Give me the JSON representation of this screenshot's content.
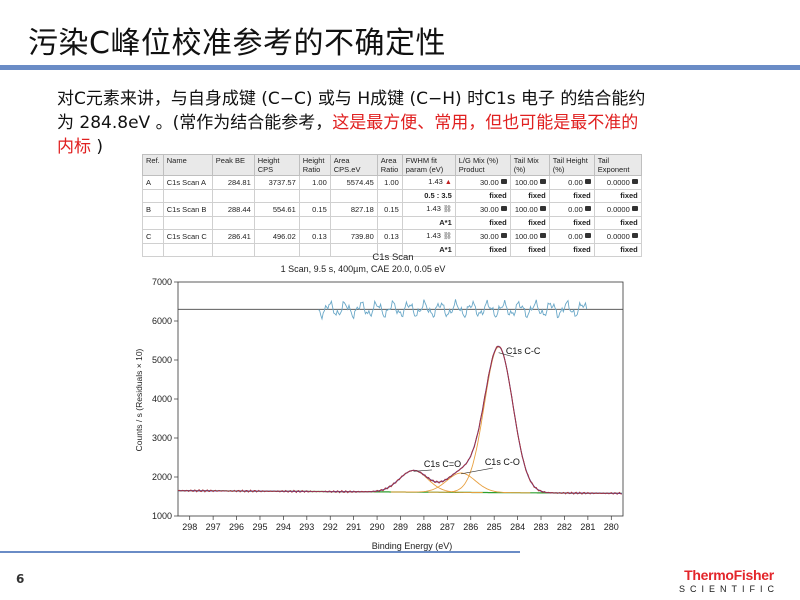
{
  "slide": {
    "title": "污染C峰位校准参考的不确定性",
    "intro_line1": "对C元素来讲，与自身成键 (C−C) 或与 H成键 (C−H) 时C1s 电子 的结合能约",
    "intro_line2a": "为 284.8eV 。(常作为结合能参考，",
    "intro_line2b_red": "这是最方便、常用，但也可能是最不准的",
    "intro_line3_red": "内标",
    "intro_line3_end": " )",
    "page_number": "6",
    "brand_line1": "ThermoFisher",
    "brand_line2": "SCIENTIFIC"
  },
  "table": {
    "headers": [
      "Ref.",
      "Name",
      "Peak BE",
      "Height CPS",
      "Height Ratio",
      "Area CPS.eV",
      "Area Ratio",
      "FWHM fit param (eV)",
      "L/G Mix (%) Product",
      "Tail Mix (%)",
      "Tail Height (%)",
      "Tail Exponent"
    ],
    "rows": [
      {
        "ref": "A",
        "name": "C1s Scan A",
        "peak_be": "284.81",
        "height": "3737.57",
        "height_ratio": "1.00",
        "area": "5574.45",
        "area_ratio": "1.00",
        "fwhm": "1.43",
        "lg": "30.00",
        "tail_mix": "100.00",
        "tail_height": "0.00",
        "tail_exp": "0.0000"
      },
      {
        "ref": "",
        "name": "",
        "peak_be": "",
        "height": "",
        "height_ratio": "",
        "area": "",
        "area_ratio": "",
        "fwhm": "0.5 : 3.5",
        "lg": "fixed",
        "tail_mix": "fixed",
        "tail_height": "fixed",
        "tail_exp": "fixed"
      },
      {
        "ref": "B",
        "name": "C1s Scan B",
        "peak_be": "288.44",
        "height": "554.61",
        "height_ratio": "0.15",
        "area": "827.18",
        "area_ratio": "0.15",
        "fwhm": "1.43",
        "lg": "30.00",
        "tail_mix": "100.00",
        "tail_height": "0.00",
        "tail_exp": "0.0000"
      },
      {
        "ref": "",
        "name": "",
        "peak_be": "",
        "height": "",
        "height_ratio": "",
        "area": "",
        "area_ratio": "",
        "fwhm": "A*1",
        "lg": "fixed",
        "tail_mix": "fixed",
        "tail_height": "fixed",
        "tail_exp": "fixed"
      },
      {
        "ref": "C",
        "name": "C1s Scan C",
        "peak_be": "286.41",
        "height": "496.02",
        "height_ratio": "0.13",
        "area": "739.80",
        "area_ratio": "0.13",
        "fwhm": "1.43",
        "lg": "30.00",
        "tail_mix": "100.00",
        "tail_height": "0.00",
        "tail_exp": "0.0000"
      },
      {
        "ref": "",
        "name": "",
        "peak_be": "",
        "height": "",
        "height_ratio": "",
        "area": "",
        "area_ratio": "",
        "fwhm": "A*1",
        "lg": "fixed",
        "tail_mix": "fixed",
        "tail_height": "fixed",
        "tail_exp": "fixed"
      }
    ]
  },
  "chart_data": {
    "type": "line",
    "title": "C1s Scan",
    "subtitle": "1 Scan,  9.5 s,  400µm,  CAE 20.0,  0.05 eV",
    "xlabel": "Binding Energy (eV)",
    "ylabel": "Counts / s  (Residuals × 10)",
    "xlim": [
      298.5,
      279.5
    ],
    "ylim": [
      1000,
      7000
    ],
    "x_reversed": true,
    "x_ticks": [
      298,
      297,
      296,
      295,
      294,
      293,
      292,
      291,
      290,
      289,
      288,
      287,
      286,
      285,
      284,
      283,
      282,
      281,
      280
    ],
    "y_ticks": [
      1000,
      2000,
      3000,
      4000,
      5000,
      6000,
      7000
    ],
    "residual_baseline": 6300,
    "background": {
      "x": [
        298.5,
        279.5
      ],
      "y": [
        1650,
        1580
      ]
    },
    "peaks": [
      {
        "label": "C1s C-C",
        "center": 284.81,
        "height": 3737.57,
        "fwhm": 1.43
      },
      {
        "label": "C1s C=O",
        "center": 288.44,
        "height": 554.61,
        "fwhm": 1.43
      },
      {
        "label": "C1s C-O",
        "center": 286.41,
        "height": 496.02,
        "fwhm": 1.43
      }
    ],
    "annotations": [
      {
        "text": "C1s C-C",
        "x": 284.5,
        "y": 5000
      },
      {
        "text": "C1s C=O",
        "x": 288.0,
        "y": 2100
      },
      {
        "text": "C1s C-O",
        "x": 285.4,
        "y": 2150
      }
    ],
    "colors": {
      "spectrum": "#a8323c",
      "envelope": "#4a4ab0",
      "background": "#2e9e2e",
      "components": "#e8a040",
      "residual": "#6aa8c8",
      "baseline": "#444444"
    }
  }
}
